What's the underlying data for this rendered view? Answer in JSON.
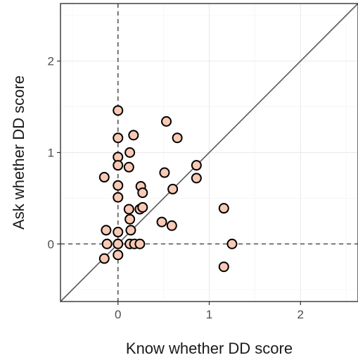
{
  "chart_data": {
    "type": "scatter",
    "xlabel": "Know whether DD score",
    "ylabel": "Ask whether DD score",
    "xlim": [
      -0.63,
      2.63
    ],
    "ylim": [
      -0.63,
      2.63
    ],
    "x_ticks": [
      0,
      1,
      2
    ],
    "y_ticks": [
      0,
      1,
      2
    ],
    "x_tick_labels": [
      "0",
      "1",
      "2"
    ],
    "y_tick_labels": [
      "0",
      "1",
      "2"
    ],
    "grid": true,
    "reference_lines": {
      "vertical_dashed_at_x": 0,
      "horizontal_dashed_at_y": 0,
      "identity_line": true
    },
    "colors": {
      "point_fill": "#f9c9b4",
      "point_stroke": "#000000",
      "reference_line": "#555555"
    },
    "points": [
      {
        "x": 0.0,
        "y": 1.46
      },
      {
        "x": 0.0,
        "y": 1.16
      },
      {
        "x": 0.17,
        "y": 1.19
      },
      {
        "x": 0.53,
        "y": 1.34
      },
      {
        "x": 0.65,
        "y": 1.16
      },
      {
        "x": 0.13,
        "y": 1.0
      },
      {
        "x": 0.0,
        "y": 0.95
      },
      {
        "x": 0.0,
        "y": 0.86
      },
      {
        "x": 0.12,
        "y": 0.84
      },
      {
        "x": -0.15,
        "y": 0.73
      },
      {
        "x": 0.51,
        "y": 0.78
      },
      {
        "x": 0.86,
        "y": 0.86
      },
      {
        "x": 0.86,
        "y": 0.72
      },
      {
        "x": 0.0,
        "y": 0.64
      },
      {
        "x": 0.25,
        "y": 0.63
      },
      {
        "x": 0.27,
        "y": 0.56
      },
      {
        "x": 0.6,
        "y": 0.6
      },
      {
        "x": 0.0,
        "y": 0.51
      },
      {
        "x": 0.12,
        "y": 0.38
      },
      {
        "x": 0.24,
        "y": 0.38
      },
      {
        "x": 0.27,
        "y": 0.4
      },
      {
        "x": 0.13,
        "y": 0.27
      },
      {
        "x": 0.48,
        "y": 0.24
      },
      {
        "x": 0.59,
        "y": 0.2
      },
      {
        "x": 1.16,
        "y": 0.39
      },
      {
        "x": -0.13,
        "y": 0.15
      },
      {
        "x": 0.0,
        "y": 0.13
      },
      {
        "x": 0.14,
        "y": 0.15
      },
      {
        "x": -0.12,
        "y": 0.0
      },
      {
        "x": 0.0,
        "y": 0.0
      },
      {
        "x": 0.13,
        "y": 0.0
      },
      {
        "x": 0.18,
        "y": 0.0
      },
      {
        "x": 0.24,
        "y": 0.0
      },
      {
        "x": 1.25,
        "y": 0.0
      },
      {
        "x": -0.15,
        "y": -0.16
      },
      {
        "x": 0.0,
        "y": -0.12
      },
      {
        "x": 1.16,
        "y": -0.25
      }
    ]
  }
}
